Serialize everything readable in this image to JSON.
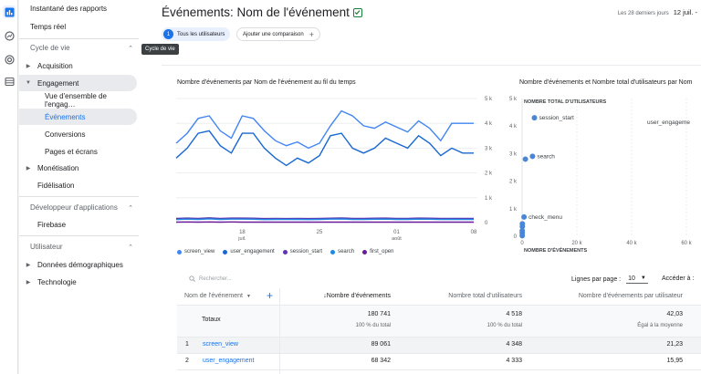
{
  "sidebar": {
    "top_items": [
      "Instantané des rapports",
      "Temps réel"
    ],
    "cycle_header": "Cycle de vie",
    "acquisition": "Acquisition",
    "engagement": "Engagement",
    "engagement_children": [
      "Vue d'ensemble de l'engag…",
      "Événements",
      "Conversions",
      "Pages et écrans"
    ],
    "monetisation": "Monétisation",
    "fidelisation": "Fidélisation",
    "dev_header": "Développeur d'applications",
    "firebase": "Firebase",
    "user_header": "Utilisateur",
    "demo": "Données démographiques",
    "tech": "Technologie"
  },
  "header": {
    "title": "Événements: Nom de l'événement",
    "date_hint": "Les 28 derniers jours",
    "date_value": "12 juil. -",
    "chip_all_num": "1",
    "chip_all": "Tous les utilisateurs",
    "chip_compare": "Ajouter une comparaison",
    "tooltip": "Cycle de vie"
  },
  "line_chart": {
    "title": "Nombre d'événements par Nom de l'événement au fil du temps",
    "y_ticks": [
      "5 k",
      "4 k",
      "3 k",
      "2 k",
      "1 k",
      "0"
    ],
    "x_ticks": [
      {
        "d": "18",
        "m": "juil."
      },
      {
        "d": "25",
        "m": ""
      },
      {
        "d": "01",
        "m": "août"
      },
      {
        "d": "08",
        "m": ""
      }
    ]
  },
  "scatter_chart": {
    "title": "Nombre d'événements et Nombre total d'utilisateurs par Nom",
    "y_axis_title": "NOMBRE TOTAL D'UTILISATEURS",
    "x_axis_title": "NOMBRE D'ÉVÉNEMENTS",
    "y_ticks": [
      "5 k",
      "4 k",
      "3 k",
      "2 k",
      "1 k",
      "0"
    ],
    "x_ticks": [
      "0",
      "20 k",
      "40 k",
      "60 k"
    ],
    "point_labels": [
      "session_start",
      "search",
      "check_menu",
      "user_engageme"
    ]
  },
  "chart_data": [
    {
      "type": "line",
      "title": "Nombre d'événements par Nom de l'événement au fil du temps",
      "ylim": [
        0,
        5000
      ],
      "x": [
        "12 juil.",
        "13",
        "14",
        "15",
        "16",
        "17",
        "18",
        "19",
        "20",
        "21",
        "22",
        "23",
        "24",
        "25",
        "26",
        "27",
        "28",
        "29",
        "30",
        "31",
        "01 août",
        "02",
        "03",
        "04",
        "05",
        "06",
        "07",
        "08"
      ],
      "series": [
        {
          "name": "screen_view",
          "color": "#4285f4",
          "values": [
            3200,
            3600,
            4200,
            4300,
            3700,
            3400,
            4300,
            4200,
            3700,
            3300,
            3100,
            3250,
            3000,
            3200,
            3900,
            4500,
            4300,
            3900,
            3800,
            4050,
            3850,
            3650,
            4100,
            3800,
            3300,
            4000,
            4000,
            4000
          ]
        },
        {
          "name": "user_engagement",
          "color": "#1967d2",
          "values": [
            2600,
            3000,
            3600,
            3700,
            3100,
            2800,
            3600,
            3600,
            3000,
            2600,
            2300,
            2600,
            2400,
            2700,
            3500,
            3600,
            3000,
            2800,
            3000,
            3400,
            3200,
            3000,
            3500,
            3200,
            2700,
            3000,
            2800,
            2800
          ]
        },
        {
          "name": "session_start",
          "color": "#5e35b1",
          "values": [
            170,
            180,
            170,
            190,
            170,
            180,
            180,
            175,
            160,
            165,
            160,
            170,
            160,
            170,
            175,
            185,
            170,
            165,
            175,
            180,
            170,
            170,
            180,
            175,
            165,
            170,
            165,
            170
          ]
        },
        {
          "name": "search",
          "color": "#1e88e5",
          "values": [
            120,
            140,
            130,
            150,
            130,
            140,
            140,
            135,
            120,
            130,
            125,
            130,
            120,
            130,
            140,
            145,
            130,
            125,
            135,
            140,
            130,
            130,
            140,
            135,
            125,
            130,
            125,
            130
          ]
        },
        {
          "name": "first_open",
          "color": "#6a1b9a",
          "values": [
            20,
            25,
            20,
            25,
            20,
            25,
            20,
            20,
            20,
            20,
            20,
            20,
            20,
            20,
            20,
            20,
            20,
            20,
            20,
            20,
            20,
            20,
            20,
            20,
            20,
            20,
            20,
            20
          ]
        }
      ]
    },
    {
      "type": "scatter",
      "title": "Nombre d'événements et Nombre total d'utilisateurs par Nom",
      "xlabel": "NOMBRE D'ÉVÉNEMENTS",
      "ylabel": "NOMBRE TOTAL D'UTILISATEURS",
      "xlim": [
        0,
        60000
      ],
      "ylim": [
        0,
        5000
      ],
      "points": [
        {
          "label": "session_start",
          "x": 4500,
          "y": 4300
        },
        {
          "label": "search",
          "x": 3800,
          "y": 2900
        },
        {
          "label": "",
          "x": 1200,
          "y": 2800
        },
        {
          "label": "check_menu",
          "x": 700,
          "y": 700
        },
        {
          "label": "",
          "x": 100,
          "y": 450
        },
        {
          "label": "",
          "x": 100,
          "y": 350
        },
        {
          "label": "",
          "x": 50,
          "y": 200
        },
        {
          "label": "",
          "x": 50,
          "y": 120
        },
        {
          "label": "",
          "x": 50,
          "y": 20
        }
      ]
    }
  ],
  "legend": [
    {
      "name": "screen_view",
      "color": "#4285f4"
    },
    {
      "name": "user_engagement",
      "color": "#1967d2"
    },
    {
      "name": "session_start",
      "color": "#5e35b1"
    },
    {
      "name": "search",
      "color": "#1e88e5"
    },
    {
      "name": "first_open",
      "color": "#6a1b9a"
    }
  ],
  "table": {
    "search_placeholder": "Rechercher...",
    "rows_per_page_label": "Lignes par page :",
    "rows_per_page_value": "10",
    "goto_label": "Accéder à :",
    "col_dim": "Nom de l'événement",
    "col_events": "Nombre d'événements",
    "col_users": "Nombre total d'utilisateurs",
    "col_per_user": "Nombre d'événements par utilisateur",
    "totals_label": "Totaux",
    "totals": {
      "events": "180 741",
      "events_sub": "100 % du total",
      "users": "4 518",
      "users_sub": "100 % du total",
      "per_user": "42,03",
      "per_user_sub": "Égal à la moyenne"
    },
    "rows": [
      {
        "idx": "1",
        "name": "screen_view",
        "events": "89 061",
        "users": "4 348",
        "per_user": "21,23"
      },
      {
        "idx": "2",
        "name": "user_engagement",
        "events": "68 342",
        "users": "4 333",
        "per_user": "15,95"
      }
    ]
  }
}
